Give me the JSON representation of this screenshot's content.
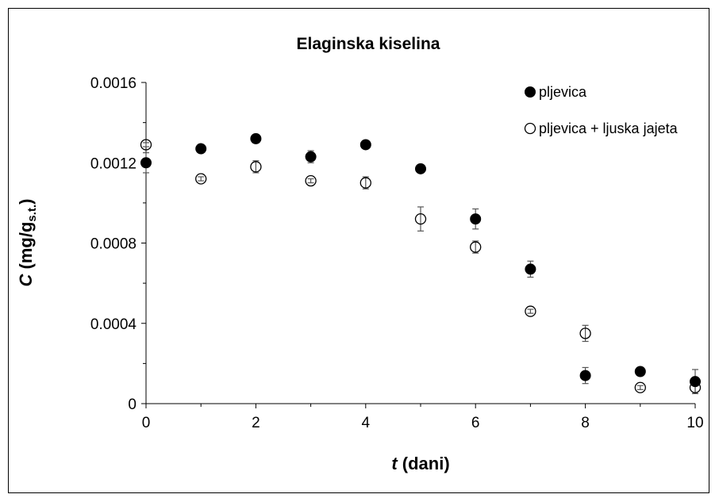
{
  "chart_data": {
    "type": "scatter",
    "title": "Elaginska kiselina",
    "xlabel": {
      "italic": "t",
      "rest": " (dani)"
    },
    "ylabel": {
      "italic": "C",
      "prefix": " (mg/g",
      "subscript": "s.t.",
      "suffix": ")"
    },
    "xlim": [
      0,
      10
    ],
    "ylim": [
      0,
      0.0016
    ],
    "x_ticks": [
      0,
      2,
      4,
      6,
      8,
      10
    ],
    "x_tick_labels": [
      "0",
      "2",
      "4",
      "6",
      "8",
      "10"
    ],
    "y_ticks": [
      0,
      0.0004,
      0.0008,
      0.0012,
      0.0016
    ],
    "y_tick_labels": [
      "0",
      "0.0004",
      "0.0008",
      "0.0012",
      "0.0016"
    ],
    "legend_position": "top-right",
    "grid": false,
    "series": [
      {
        "name": "pljevica",
        "marker": "filled-circle",
        "color": "#000000",
        "x": [
          0,
          1,
          2,
          3,
          4,
          5,
          6,
          7,
          8,
          9,
          10
        ],
        "y": [
          0.0012,
          0.00127,
          0.00132,
          0.00123,
          0.00129,
          0.00117,
          0.00092,
          0.00067,
          0.00014,
          0.00016,
          0.00011
        ],
        "error": [
          5e-05,
          1e-05,
          2e-05,
          3e-05,
          1e-05,
          1e-05,
          5e-05,
          4e-05,
          4e-05,
          1e-05,
          6e-05
        ]
      },
      {
        "name": "pljevica + ljuska jajeta",
        "marker": "open-circle",
        "color": "#000000",
        "x": [
          0,
          1,
          2,
          3,
          4,
          5,
          6,
          7,
          8,
          9,
          10
        ],
        "y": [
          0.00129,
          0.00112,
          0.00118,
          0.00111,
          0.0011,
          0.00092,
          0.00078,
          0.00046,
          0.00035,
          8e-05,
          8e-05
        ],
        "error": [
          1e-05,
          1e-05,
          3e-05,
          1e-05,
          3e-05,
          6e-05,
          3e-05,
          1e-05,
          4e-05,
          1e-05,
          3e-05
        ]
      }
    ]
  }
}
